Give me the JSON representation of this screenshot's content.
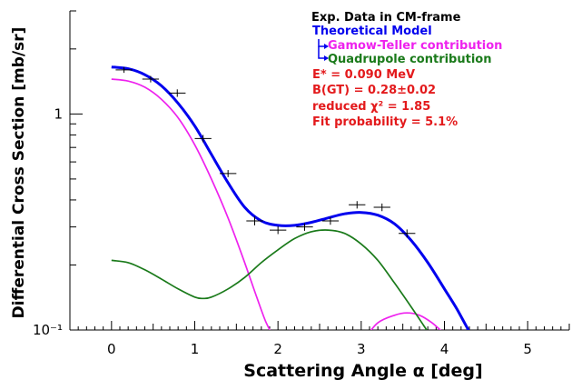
{
  "chart_data": {
    "type": "line",
    "xlabel": "Scattering Angle α [deg]",
    "ylabel": "Differential Cross Section [mb/sr]",
    "xlim": [
      -0.5,
      5.5
    ],
    "ylim": [
      0.1,
      3.0
    ],
    "yscale": "log",
    "x_ticks": [
      0,
      1,
      2,
      3,
      4,
      5
    ],
    "x_tick_labels": [
      "0",
      "1",
      "2",
      "3",
      "4",
      "5"
    ],
    "y_ticks": [
      0.1,
      1
    ],
    "y_tick_labels": [
      "10⁻¹",
      "1"
    ],
    "grid": false,
    "legend": {
      "placement": "top-right",
      "items": [
        {
          "label": "Exp. Data in CM-frame",
          "color": "#000000"
        },
        {
          "label": "Theoretical Model",
          "color": "#0000ee"
        },
        {
          "label": "Gamow-Teller contribution",
          "color": "#ee22ee"
        },
        {
          "label": "Quadrupole contribution",
          "color": "#1a7a1a"
        }
      ]
    },
    "annotations": [
      "E* = 0.090 MeV",
      "B(GT) = 0.28±0.02",
      "reduced χ² = 1.85",
      "Fit probability = 5.1%"
    ],
    "series": [
      {
        "color": "#000000",
        "kind": "points",
        "points": [
          {
            "x": 0.15,
            "y": 1.6,
            "xerr": 0.1,
            "yerr": 0.05
          },
          {
            "x": 0.47,
            "y": 1.45,
            "xerr": 0.1,
            "yerr": 0.05
          },
          {
            "x": 0.79,
            "y": 1.25,
            "xerr": 0.1,
            "yerr": 0.05
          },
          {
            "x": 1.1,
            "y": 0.77,
            "xerr": 0.1,
            "yerr": 0.03
          },
          {
            "x": 1.4,
            "y": 0.53,
            "xerr": 0.1,
            "yerr": 0.02
          },
          {
            "x": 1.72,
            "y": 0.32,
            "xerr": 0.1,
            "yerr": 0.015
          },
          {
            "x": 2.0,
            "y": 0.29,
            "xerr": 0.1,
            "yerr": 0.012
          },
          {
            "x": 2.32,
            "y": 0.3,
            "xerr": 0.1,
            "yerr": 0.012
          },
          {
            "x": 2.63,
            "y": 0.32,
            "xerr": 0.1,
            "yerr": 0.013
          },
          {
            "x": 2.95,
            "y": 0.38,
            "xerr": 0.1,
            "yerr": 0.015
          },
          {
            "x": 3.25,
            "y": 0.37,
            "xerr": 0.1,
            "yerr": 0.015
          },
          {
            "x": 3.55,
            "y": 0.28,
            "xerr": 0.1,
            "yerr": 0.012
          }
        ]
      },
      {
        "color": "#0000ee",
        "kind": "curve",
        "points": [
          [
            0.0,
            1.65
          ],
          [
            0.2,
            1.62
          ],
          [
            0.4,
            1.52
          ],
          [
            0.6,
            1.35
          ],
          [
            0.8,
            1.12
          ],
          [
            1.0,
            0.88
          ],
          [
            1.2,
            0.65
          ],
          [
            1.4,
            0.48
          ],
          [
            1.6,
            0.37
          ],
          [
            1.8,
            0.32
          ],
          [
            2.0,
            0.305
          ],
          [
            2.2,
            0.305
          ],
          [
            2.4,
            0.315
          ],
          [
            2.6,
            0.33
          ],
          [
            2.8,
            0.345
          ],
          [
            3.0,
            0.35
          ],
          [
            3.2,
            0.34
          ],
          [
            3.4,
            0.31
          ],
          [
            3.6,
            0.26
          ],
          [
            3.8,
            0.205
          ],
          [
            4.0,
            0.155
          ],
          [
            4.15,
            0.125
          ],
          [
            4.3,
            0.098
          ]
        ]
      },
      {
        "color": "#ee22ee",
        "kind": "curve",
        "points": [
          [
            0.0,
            1.45
          ],
          [
            0.2,
            1.42
          ],
          [
            0.4,
            1.33
          ],
          [
            0.6,
            1.17
          ],
          [
            0.8,
            0.96
          ],
          [
            1.0,
            0.72
          ],
          [
            1.2,
            0.5
          ],
          [
            1.4,
            0.33
          ],
          [
            1.6,
            0.205
          ],
          [
            1.75,
            0.14
          ],
          [
            1.85,
            0.11
          ],
          [
            1.95,
            0.092
          ]
        ]
      },
      {
        "color": "#ee22ee",
        "kind": "curve",
        "points": [
          [
            3.05,
            0.092
          ],
          [
            3.2,
            0.108
          ],
          [
            3.4,
            0.117
          ],
          [
            3.55,
            0.12
          ],
          [
            3.7,
            0.117
          ],
          [
            3.85,
            0.108
          ],
          [
            4.0,
            0.096
          ]
        ]
      },
      {
        "color": "#1a7a1a",
        "kind": "curve",
        "points": [
          [
            0.0,
            0.21
          ],
          [
            0.2,
            0.205
          ],
          [
            0.4,
            0.19
          ],
          [
            0.6,
            0.172
          ],
          [
            0.8,
            0.155
          ],
          [
            1.0,
            0.142
          ],
          [
            1.1,
            0.14
          ],
          [
            1.2,
            0.142
          ],
          [
            1.4,
            0.155
          ],
          [
            1.6,
            0.175
          ],
          [
            1.8,
            0.205
          ],
          [
            2.0,
            0.235
          ],
          [
            2.2,
            0.265
          ],
          [
            2.4,
            0.285
          ],
          [
            2.6,
            0.29
          ],
          [
            2.8,
            0.28
          ],
          [
            3.0,
            0.25
          ],
          [
            3.2,
            0.21
          ],
          [
            3.4,
            0.165
          ],
          [
            3.6,
            0.128
          ],
          [
            3.75,
            0.105
          ],
          [
            3.85,
            0.092
          ]
        ]
      }
    ]
  }
}
